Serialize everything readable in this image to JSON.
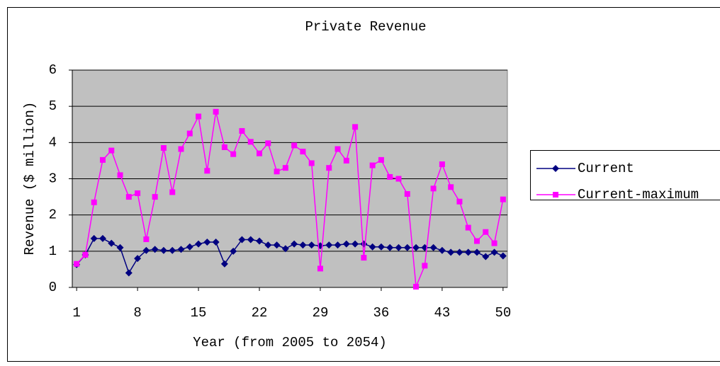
{
  "chart_data": {
    "type": "line",
    "title": "Private Revenue",
    "x_label": "Year (from 2005 to 2054)",
    "y_label": "Revenue ($ million)",
    "x": [
      1,
      2,
      3,
      4,
      5,
      6,
      7,
      8,
      9,
      10,
      11,
      12,
      13,
      14,
      15,
      16,
      17,
      18,
      19,
      20,
      21,
      22,
      23,
      24,
      25,
      26,
      27,
      28,
      29,
      30,
      31,
      32,
      33,
      34,
      35,
      36,
      37,
      38,
      39,
      40,
      41,
      42,
      43,
      44,
      45,
      46,
      47,
      48,
      49,
      50
    ],
    "xlim": [
      0.5,
      50.5
    ],
    "xticks": [
      1,
      8,
      15,
      22,
      29,
      36,
      43,
      50
    ],
    "ylim": [
      0,
      6
    ],
    "yticks": [
      0,
      1,
      2,
      3,
      4,
      5,
      6
    ],
    "grid": true,
    "legend": "right",
    "series": [
      {
        "name": "Current",
        "color": "#000080",
        "marker": "diamond",
        "values": [
          0.63,
          0.9,
          1.35,
          1.35,
          1.22,
          1.1,
          0.4,
          0.8,
          1.02,
          1.05,
          1.02,
          1.02,
          1.05,
          1.12,
          1.2,
          1.25,
          1.25,
          0.65,
          1.0,
          1.32,
          1.32,
          1.28,
          1.17,
          1.17,
          1.07,
          1.2,
          1.17,
          1.17,
          1.15,
          1.17,
          1.17,
          1.2,
          1.2,
          1.2,
          1.12,
          1.12,
          1.1,
          1.1,
          1.1,
          1.1,
          1.1,
          1.1,
          1.02,
          0.97,
          0.97,
          0.97,
          0.97,
          0.85,
          0.97,
          0.87
        ]
      },
      {
        "name": "Current-maximum",
        "color": "#ff00ff",
        "marker": "square",
        "values": [
          0.65,
          0.9,
          2.35,
          3.52,
          3.78,
          3.1,
          2.5,
          2.6,
          1.33,
          2.5,
          3.85,
          2.63,
          3.82,
          4.25,
          4.72,
          3.22,
          4.85,
          3.87,
          3.68,
          4.32,
          4.02,
          3.7,
          3.98,
          3.2,
          3.3,
          3.92,
          3.75,
          3.43,
          0.52,
          3.3,
          3.82,
          3.5,
          4.43,
          0.82,
          3.37,
          3.52,
          3.05,
          3.0,
          2.58,
          0.02,
          0.6,
          2.73,
          3.4,
          2.77,
          2.37,
          1.65,
          1.28,
          1.53,
          1.22,
          2.43
        ]
      }
    ]
  }
}
